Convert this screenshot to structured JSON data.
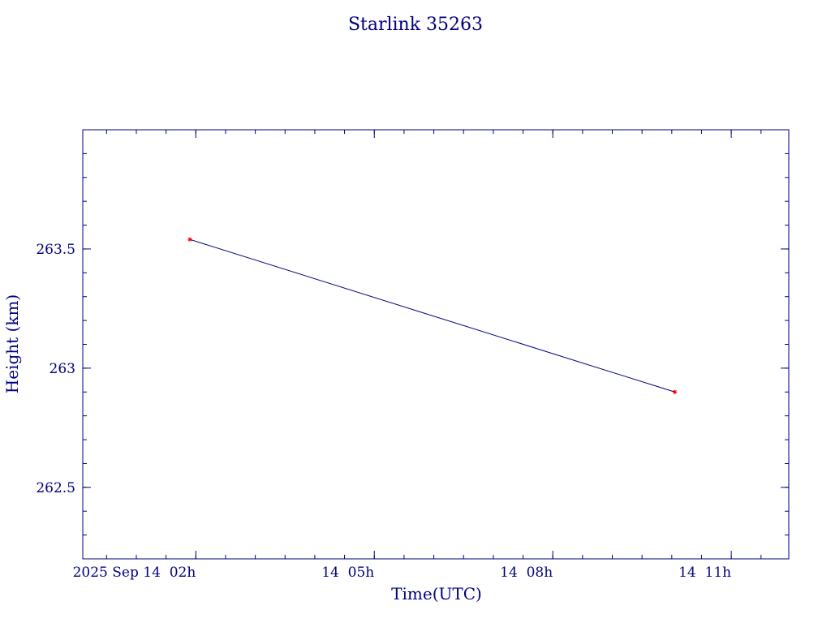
{
  "chart_data": {
    "type": "line",
    "title": "Starlink 35263",
    "xlabel": "Time(UTC)",
    "ylabel": "Height (km)",
    "xlim": [
      "2025-09-14T00:06",
      "2025-09-14T11:58"
    ],
    "ylim": [
      262.2,
      264.0
    ],
    "x_ticks": [
      {
        "value": "2025-09-14T02:00",
        "label": "2025 Sep 14  02h"
      },
      {
        "value": "2025-09-14T05:00",
        "label": "14  05h"
      },
      {
        "value": "2025-09-14T08:00",
        "label": "14  08h"
      },
      {
        "value": "2025-09-14T11:00",
        "label": "14  11h"
      }
    ],
    "y_ticks": [
      {
        "value": 262.5,
        "label": "262.5"
      },
      {
        "value": 263,
        "label": "263"
      },
      {
        "value": 263.5,
        "label": "263.5"
      }
    ],
    "series": [
      {
        "x": [
          "2025-09-14T01:54",
          "2025-09-14T10:03"
        ],
        "y": [
          263.54,
          262.9
        ]
      }
    ],
    "grid": false,
    "legend": "none",
    "colors": {
      "axis": "#00007f",
      "line": "#00007f",
      "marker": "#ff0000",
      "text": "#00007f"
    }
  }
}
